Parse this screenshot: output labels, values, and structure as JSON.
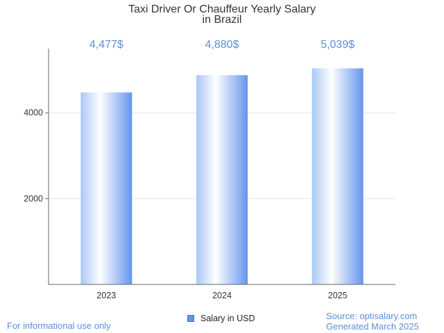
{
  "colors": {
    "accent": "#6495ed",
    "label": "#5b8fd8",
    "text": "#333333",
    "grid": "#e6e6e6",
    "axis": "#666666"
  },
  "footer": {
    "disclaimer": "For informational use only",
    "source": "Source: optisalary.com",
    "generated": "Generated March 2025"
  },
  "legend": {
    "label": "Salary in USD"
  },
  "chart_data": {
    "type": "bar",
    "title": "Taxi Driver Or Chauffeur Yearly Salary",
    "subtitle": "in Brazil",
    "categories": [
      "2023",
      "2024",
      "2025"
    ],
    "series": [
      {
        "name": "Salary in USD",
        "values": [
          4477,
          4880,
          5039
        ],
        "labels": [
          "4,477$",
          "4,880$",
          "5,039$"
        ]
      }
    ],
    "xlabel": "",
    "ylabel": "",
    "ylim": [
      0,
      5500
    ],
    "yticks": [
      2000,
      4000
    ],
    "grid": true,
    "legend_position": "bottom-center"
  }
}
